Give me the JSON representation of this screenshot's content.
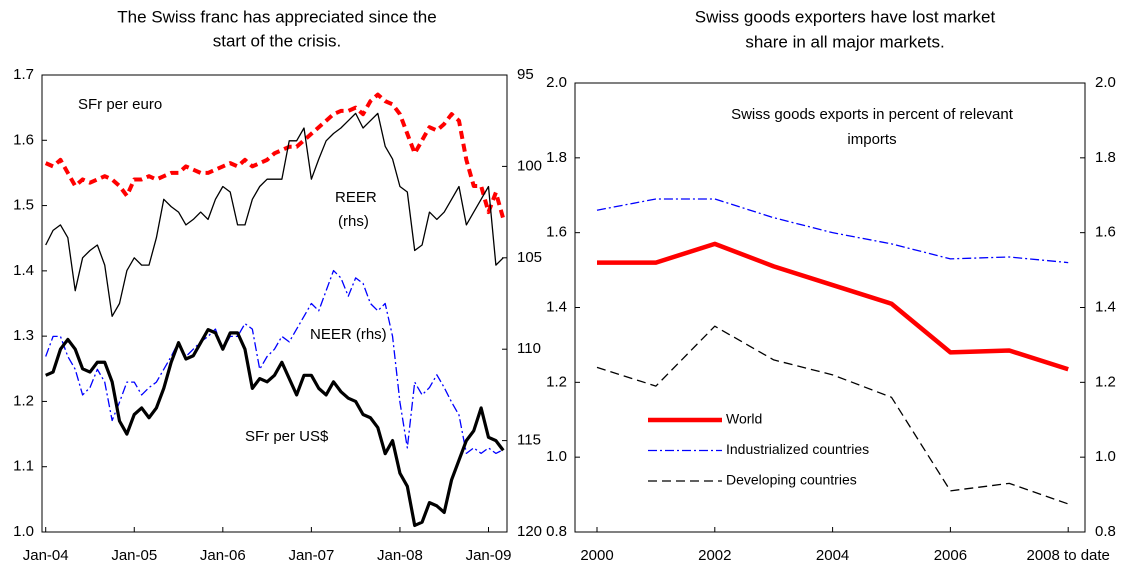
{
  "chart_data": [
    {
      "type": "line",
      "title": [
        "The Swiss franc has appreciated since the",
        "start of the crisis."
      ],
      "categories": [
        "Jan-04",
        null,
        null,
        null,
        null,
        null,
        null,
        null,
        null,
        null,
        null,
        null,
        "Jan-05",
        null,
        null,
        null,
        null,
        null,
        null,
        null,
        null,
        null,
        null,
        null,
        "Jan-06",
        null,
        null,
        null,
        null,
        null,
        null,
        null,
        null,
        null,
        null,
        null,
        "Jan-07",
        null,
        null,
        null,
        null,
        null,
        null,
        null,
        null,
        null,
        null,
        null,
        "Jan-08",
        null,
        null,
        null,
        null,
        null,
        null,
        null,
        null,
        null,
        null,
        null,
        "Jan-09",
        null,
        null
      ],
      "ylim": [
        1,
        1.7
      ],
      "yticks": [
        {
          "value": 1,
          "label": "1.0"
        },
        1.1,
        1.2,
        1.3,
        1.4,
        1.5,
        1.6,
        1.7
      ],
      "y2lim": [
        120,
        95
      ],
      "y2ticks": [
        95,
        100,
        105,
        110,
        115,
        120
      ],
      "legend": "inline",
      "annotations": [
        "(rhs)"
      ],
      "series": [
        {
          "name": "SFr per euro",
          "color": "#ff0000",
          "style": "dashed-thick",
          "values": [
            1.565,
            1.56,
            1.57,
            1.55,
            1.53,
            1.54,
            1.535,
            1.54,
            1.545,
            1.54,
            1.53,
            1.515,
            1.54,
            1.54,
            1.545,
            1.54,
            1.545,
            1.55,
            1.55,
            1.56,
            1.555,
            1.55,
            1.55,
            1.555,
            1.56,
            1.565,
            1.56,
            1.57,
            1.56,
            1.565,
            1.57,
            1.58,
            1.585,
            1.59,
            1.59,
            1.6,
            1.61,
            1.62,
            1.63,
            1.64,
            1.645,
            1.645,
            1.65,
            1.64,
            1.66,
            1.67,
            1.66,
            1.655,
            1.64,
            1.61,
            1.58,
            1.6,
            1.62,
            1.615,
            1.625,
            1.64,
            1.63,
            1.57,
            1.53,
            1.53,
            1.49,
            1.52,
            1.48
          ]
        },
        {
          "name": "REER",
          "color": "#000000",
          "style": "solid",
          "axis": "y2",
          "values": [
            104.3,
            103.5,
            103.2,
            103.9,
            106.8,
            105.0,
            104.6,
            104.3,
            105.4,
            108.2,
            107.5,
            105.7,
            105.0,
            105.4,
            105.4,
            103.9,
            101.8,
            102.2,
            102.5,
            103.2,
            102.9,
            102.5,
            102.9,
            101.8,
            101.1,
            101.4,
            103.2,
            103.2,
            101.8,
            101.1,
            100.7,
            100.7,
            100.7,
            98.6,
            98.6,
            97.9,
            100.7,
            99.6,
            98.6,
            98.2,
            97.9,
            97.5,
            97.1,
            97.9,
            97.5,
            97.1,
            98.9,
            99.6,
            101.1,
            101.4,
            104.6,
            104.3,
            102.5,
            102.9,
            102.5,
            101.8,
            101.1,
            103.2,
            102.5,
            101.8,
            101.1,
            105.4,
            105.0
          ]
        },
        {
          "name": "NEER (rhs)",
          "color": "#0000ff",
          "style": "dashdot",
          "axis": "y2",
          "values": [
            110.4,
            109.3,
            109.3,
            110.4,
            111.1,
            112.5,
            112.1,
            111.1,
            111.8,
            113.9,
            112.9,
            111.8,
            111.8,
            112.5,
            112.1,
            111.8,
            111.1,
            110.4,
            109.6,
            110.4,
            110.0,
            109.6,
            109.3,
            108.9,
            110.0,
            109.3,
            109.3,
            108.6,
            108.9,
            111.1,
            110.4,
            110.0,
            109.3,
            109.6,
            108.9,
            108.2,
            107.5,
            107.9,
            106.8,
            105.7,
            106.1,
            107.1,
            106.1,
            106.4,
            107.5,
            107.9,
            107.5,
            109.3,
            112.9,
            115.4,
            111.8,
            112.5,
            112.1,
            111.4,
            112.1,
            112.9,
            113.6,
            115.7,
            115.4,
            115.7,
            115.4,
            115.7,
            115.5
          ]
        },
        {
          "name": "SFr per US$",
          "color": "#000000",
          "style": "solid-thick",
          "values": [
            1.24,
            1.245,
            1.28,
            1.295,
            1.28,
            1.25,
            1.245,
            1.26,
            1.26,
            1.23,
            1.17,
            1.15,
            1.18,
            1.19,
            1.175,
            1.19,
            1.22,
            1.26,
            1.29,
            1.265,
            1.27,
            1.29,
            1.31,
            1.305,
            1.28,
            1.305,
            1.305,
            1.28,
            1.22,
            1.235,
            1.23,
            1.24,
            1.26,
            1.235,
            1.21,
            1.24,
            1.24,
            1.22,
            1.21,
            1.23,
            1.215,
            1.205,
            1.2,
            1.18,
            1.175,
            1.16,
            1.12,
            1.14,
            1.09,
            1.07,
            1.01,
            1.015,
            1.045,
            1.04,
            1.03,
            1.08,
            1.11,
            1.14,
            1.155,
            1.19,
            1.145,
            1.14,
            1.125
          ]
        }
      ]
    },
    {
      "type": "line",
      "title": [
        "Swiss goods exporters have lost market",
        "share in all major markets."
      ],
      "categories": [
        "2000",
        null,
        "2002",
        null,
        "2004",
        null,
        "2006",
        null,
        "2008 to date"
      ],
      "ylim": [
        0.8,
        2
      ],
      "yticks": [
        0.8,
        {
          "value": 1,
          "label": "1.0"
        },
        1.2,
        1.4,
        1.6,
        1.8,
        {
          "value": 2,
          "label": "2.0"
        }
      ],
      "y2lim": [
        0.8,
        2
      ],
      "y2ticks": [
        0.8,
        {
          "value": 1,
          "label": "1.0"
        },
        1.2,
        1.4,
        1.6,
        1.8,
        {
          "value": 2,
          "label": "2.0"
        }
      ],
      "legend": "lower left",
      "annotations": [
        "Swiss goods exports in percent of relevant",
        "imports"
      ],
      "series": [
        {
          "name": "World",
          "color": "#ff0000",
          "style": "solid-heavy",
          "values": [
            1.52,
            1.52,
            1.57,
            1.51,
            1.46,
            1.41,
            1.28,
            1.285,
            1.235
          ]
        },
        {
          "name": "Industrialized countries",
          "color": "#0000ff",
          "style": "dashdot",
          "values": [
            1.66,
            1.69,
            1.69,
            1.64,
            1.6,
            1.57,
            1.53,
            1.535,
            1.52
          ]
        },
        {
          "name": "Developing countries",
          "color": "#000000",
          "style": "dashed",
          "values": [
            1.24,
            1.19,
            1.35,
            1.26,
            1.22,
            1.16,
            0.91,
            0.93,
            0.875
          ]
        }
      ]
    }
  ]
}
